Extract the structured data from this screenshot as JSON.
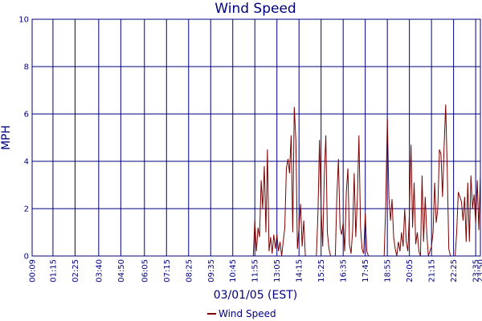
{
  "chart_data": {
    "type": "line",
    "title": "Wind Speed",
    "xlabel": "03/01/05 (EST)",
    "ylabel": "MPH",
    "ylim": [
      0,
      10
    ],
    "yticks": [
      "0",
      "2",
      "4",
      "6",
      "8",
      "10"
    ],
    "x_range": [
      "00:09",
      "23:50"
    ],
    "xticks": [
      "00:09",
      "01:15",
      "02:25",
      "03:40",
      "04:50",
      "06:05",
      "07:15",
      "08:25",
      "09:35",
      "10:45",
      "11:55",
      "13:05",
      "14:15",
      "15:25",
      "16:35",
      "17:45",
      "18:55",
      "20:05",
      "21:15",
      "22:25",
      "23:35",
      "23:50"
    ],
    "grid": true,
    "legend_position": "bottom-center",
    "colors": {
      "series": "#7f0000",
      "grid": "#00007f",
      "text": "#00007f"
    },
    "series": [
      {
        "name": "Wind Speed",
        "points": [
          [
            "00:09",
            0
          ],
          [
            "11:50",
            0
          ],
          [
            "11:55",
            1.5
          ],
          [
            "12:00",
            0.2
          ],
          [
            "12:05",
            1.2
          ],
          [
            "12:10",
            0.8
          ],
          [
            "12:15",
            3.2
          ],
          [
            "12:20",
            2.0
          ],
          [
            "12:25",
            3.8
          ],
          [
            "12:30",
            1.0
          ],
          [
            "12:35",
            4.5
          ],
          [
            "12:40",
            0.2
          ],
          [
            "12:45",
            0.8
          ],
          [
            "12:50",
            0.1
          ],
          [
            "12:55",
            0.9
          ],
          [
            "13:00",
            0.3
          ],
          [
            "13:05",
            0.9
          ],
          [
            "13:10",
            0.2
          ],
          [
            "13:15",
            0.6
          ],
          [
            "13:20",
            0
          ],
          [
            "13:30",
            1.2
          ],
          [
            "13:35",
            3.7
          ],
          [
            "13:40",
            4.1
          ],
          [
            "13:45",
            3.5
          ],
          [
            "13:50",
            5.1
          ],
          [
            "13:55",
            1.0
          ],
          [
            "14:00",
            6.3
          ],
          [
            "14:05",
            4.9
          ],
          [
            "14:10",
            0.3
          ],
          [
            "14:15",
            1.2
          ],
          [
            "14:20",
            2.2
          ],
          [
            "14:25",
            0.4
          ],
          [
            "14:30",
            1.5
          ],
          [
            "14:35",
            0
          ],
          [
            "15:10",
            0
          ],
          [
            "15:15",
            1.8
          ],
          [
            "15:20",
            4.9
          ],
          [
            "15:25",
            2.0
          ],
          [
            "15:30",
            0.4
          ],
          [
            "15:35",
            3.3
          ],
          [
            "15:40",
            5.1
          ],
          [
            "15:45",
            1.0
          ],
          [
            "15:50",
            0.3
          ],
          [
            "15:55",
            0
          ],
          [
            "16:10",
            0
          ],
          [
            "16:15",
            2.5
          ],
          [
            "16:20",
            4.1
          ],
          [
            "16:25",
            1.2
          ],
          [
            "16:30",
            0.9
          ],
          [
            "16:35",
            1.4
          ],
          [
            "16:40",
            0.2
          ],
          [
            "16:45",
            2.7
          ],
          [
            "16:50",
            3.7
          ],
          [
            "16:55",
            0.5
          ],
          [
            "17:00",
            0.1
          ],
          [
            "17:05",
            1.1
          ],
          [
            "17:10",
            3.5
          ],
          [
            "17:15",
            0.8
          ],
          [
            "17:20",
            2.5
          ],
          [
            "17:25",
            5.1
          ],
          [
            "17:30",
            1.2
          ],
          [
            "17:35",
            0.3
          ],
          [
            "17:40",
            0.1
          ],
          [
            "17:45",
            1.8
          ],
          [
            "17:50",
            0.2
          ],
          [
            "17:55",
            0
          ],
          [
            "18:45",
            0
          ],
          [
            "18:50",
            2.2
          ],
          [
            "18:55",
            5.8
          ],
          [
            "19:00",
            2.5
          ],
          [
            "19:05",
            1.5
          ],
          [
            "19:10",
            2.4
          ],
          [
            "19:15",
            0.8
          ],
          [
            "19:20",
            0.3
          ],
          [
            "19:25",
            0
          ],
          [
            "19:30",
            0.6
          ],
          [
            "19:35",
            0.2
          ],
          [
            "19:40",
            1.0
          ],
          [
            "19:45",
            0.4
          ],
          [
            "19:50",
            2.0
          ],
          [
            "19:55",
            0.6
          ],
          [
            "20:00",
            0.2
          ],
          [
            "20:05",
            1.8
          ],
          [
            "20:10",
            4.7
          ],
          [
            "20:15",
            1.2
          ],
          [
            "20:20",
            3.1
          ],
          [
            "20:25",
            0.5
          ],
          [
            "20:30",
            1.0
          ],
          [
            "20:35",
            0.2
          ],
          [
            "20:40",
            0
          ],
          [
            "20:45",
            3.4
          ],
          [
            "20:50",
            0.6
          ],
          [
            "20:55",
            2.5
          ],
          [
            "21:00",
            1.0
          ],
          [
            "21:05",
            0
          ],
          [
            "21:15",
            0.4
          ],
          [
            "21:20",
            1.0
          ],
          [
            "21:25",
            3.1
          ],
          [
            "21:30",
            1.4
          ],
          [
            "21:35",
            2.0
          ],
          [
            "21:40",
            4.5
          ],
          [
            "21:45",
            4.3
          ],
          [
            "21:50",
            2.5
          ],
          [
            "21:55",
            4.6
          ],
          [
            "22:00",
            6.4
          ],
          [
            "22:05",
            3.5
          ],
          [
            "22:10",
            0.3
          ],
          [
            "22:15",
            0
          ],
          [
            "22:30",
            0
          ],
          [
            "22:35",
            1.0
          ],
          [
            "22:40",
            2.7
          ],
          [
            "22:45",
            2.5
          ],
          [
            "22:50",
            2.3
          ],
          [
            "22:55",
            1.5
          ],
          [
            "23:00",
            2.5
          ],
          [
            "23:05",
            0.6
          ],
          [
            "23:10",
            3.1
          ],
          [
            "23:15",
            0.6
          ],
          [
            "23:20",
            3.4
          ],
          [
            "23:25",
            2.0
          ],
          [
            "23:30",
            2.6
          ],
          [
            "23:35",
            1.4
          ],
          [
            "23:40",
            3.2
          ],
          [
            "23:45",
            1.1
          ],
          [
            "23:50",
            3.4
          ]
        ]
      }
    ]
  }
}
